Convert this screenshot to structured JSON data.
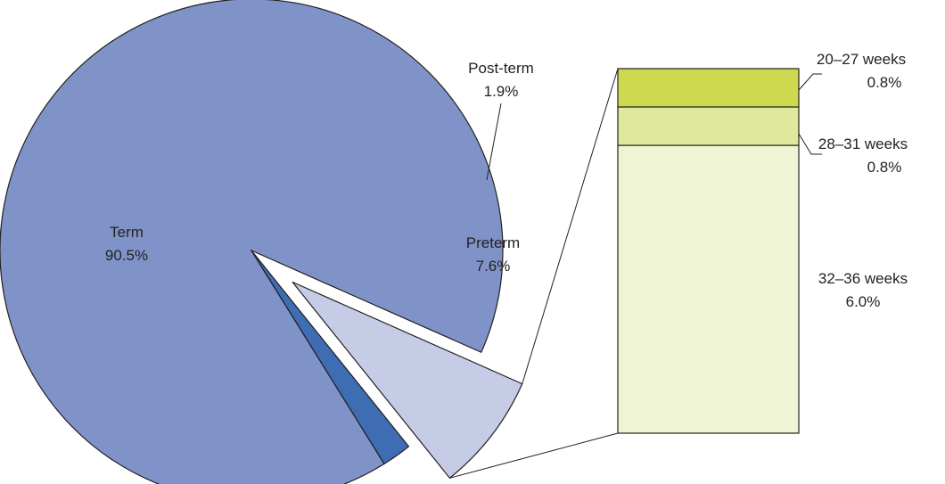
{
  "chart_data": {
    "type": "pie",
    "title": "",
    "slices": [
      {
        "label": "Term",
        "value": 90.5,
        "value_label": "90.5%",
        "color": "#8093c9"
      },
      {
        "label": "Post-term",
        "value": 1.9,
        "value_label": "1.9%",
        "color": "#3f6db4"
      },
      {
        "label": "Preterm",
        "value": 7.6,
        "value_label": "7.6%",
        "color": "#c6cce6",
        "exploded": true
      }
    ],
    "breakdown": {
      "of": "Preterm",
      "type": "stacked-bar",
      "segments": [
        {
          "label": "20–27 weeks",
          "value": 0.8,
          "value_label": "0.8%",
          "color": "#cdd94f"
        },
        {
          "label": "28–31 weeks",
          "value": 0.8,
          "value_label": "0.8%",
          "color": "#e0e89e"
        },
        {
          "label": "32–36 weeks",
          "value": 6.0,
          "value_label": "6.0%",
          "color": "#eff4d4"
        }
      ]
    }
  }
}
